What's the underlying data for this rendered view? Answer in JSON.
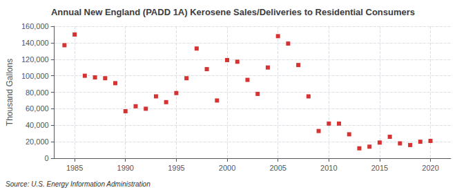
{
  "chart_data": {
    "type": "scatter",
    "title": "Annual New England (PADD 1A) Kerosene Sales/Deliveries to Residential Consumers",
    "ylabel": "Thousand Gallons",
    "source": "Source: U.S. Energy Information Administration",
    "x": [
      1984,
      1985,
      1986,
      1987,
      1988,
      1989,
      1990,
      1991,
      1992,
      1993,
      1994,
      1995,
      1996,
      1997,
      1998,
      1999,
      2000,
      2001,
      2002,
      2003,
      2004,
      2005,
      2006,
      2007,
      2008,
      2009,
      2010,
      2011,
      2012,
      2013,
      2014,
      2015,
      2016,
      2017,
      2018,
      2019,
      2020
    ],
    "values": [
      137000,
      150000,
      100000,
      98000,
      97000,
      91000,
      57000,
      63000,
      60000,
      75000,
      68000,
      79000,
      97000,
      133000,
      108000,
      70000,
      119000,
      117000,
      95000,
      78000,
      110000,
      148000,
      139000,
      113000,
      75000,
      33000,
      42000,
      42000,
      29000,
      12000,
      14000,
      19000,
      26000,
      18000,
      16000,
      20000,
      21000
    ],
    "color": "#cc0000",
    "marker": "square",
    "xlim": [
      1983,
      2022
    ],
    "xticks": [
      1985,
      1990,
      1995,
      2000,
      2005,
      2010,
      2015,
      2020
    ],
    "ylim": [
      0,
      160000
    ],
    "yticks": [
      0,
      {
        "value": 20000,
        "label": "20,000"
      },
      {
        "value": 40000,
        "label": "40,000"
      },
      {
        "value": 60000,
        "label": "60,000"
      },
      {
        "value": 80000,
        "label": "80,000"
      },
      {
        "value": 100000,
        "label": "100,000"
      },
      {
        "value": 120000,
        "label": "120,000"
      },
      {
        "value": 140000,
        "label": "140,000"
      },
      {
        "value": 160000,
        "label": "160,000"
      }
    ],
    "grid": true
  }
}
